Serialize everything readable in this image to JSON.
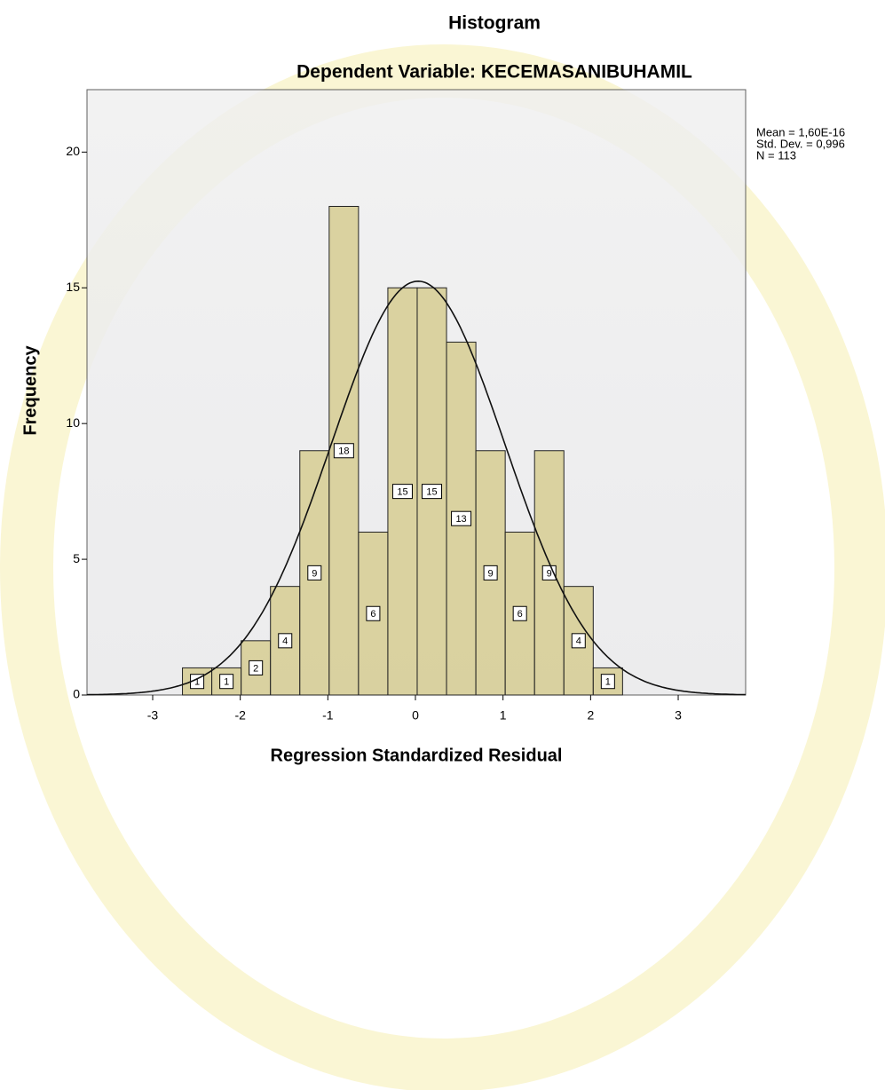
{
  "chart_data": {
    "type": "histogram",
    "title": "Histogram",
    "subtitle": "Dependent Variable: KECEMASANIBUHAMIL",
    "xlabel": "Regression Standardized Residual",
    "ylabel": "Frequency",
    "stats": [
      "Mean = 1,60E-16",
      "Std. Dev. = 0,996",
      "N = 113"
    ],
    "bins": [
      -2.66,
      -2.325,
      -1.99,
      -1.655,
      -1.32,
      -0.985,
      -0.65,
      -0.315,
      0.02,
      0.355,
      0.69,
      1.025,
      1.36,
      1.695,
      2.03,
      2.365
    ],
    "values": [
      1,
      1,
      2,
      4,
      9,
      18,
      6,
      15,
      15,
      13,
      9,
      6,
      9,
      4,
      1
    ],
    "color": "#d4ca8c",
    "xlim": [
      -3.75,
      3.77
    ],
    "ylim": [
      0,
      22.3
    ],
    "xticks": [
      -3,
      -2,
      -1,
      0,
      1,
      2,
      3
    ],
    "yticks": [
      0,
      5,
      10,
      15,
      20
    ]
  }
}
